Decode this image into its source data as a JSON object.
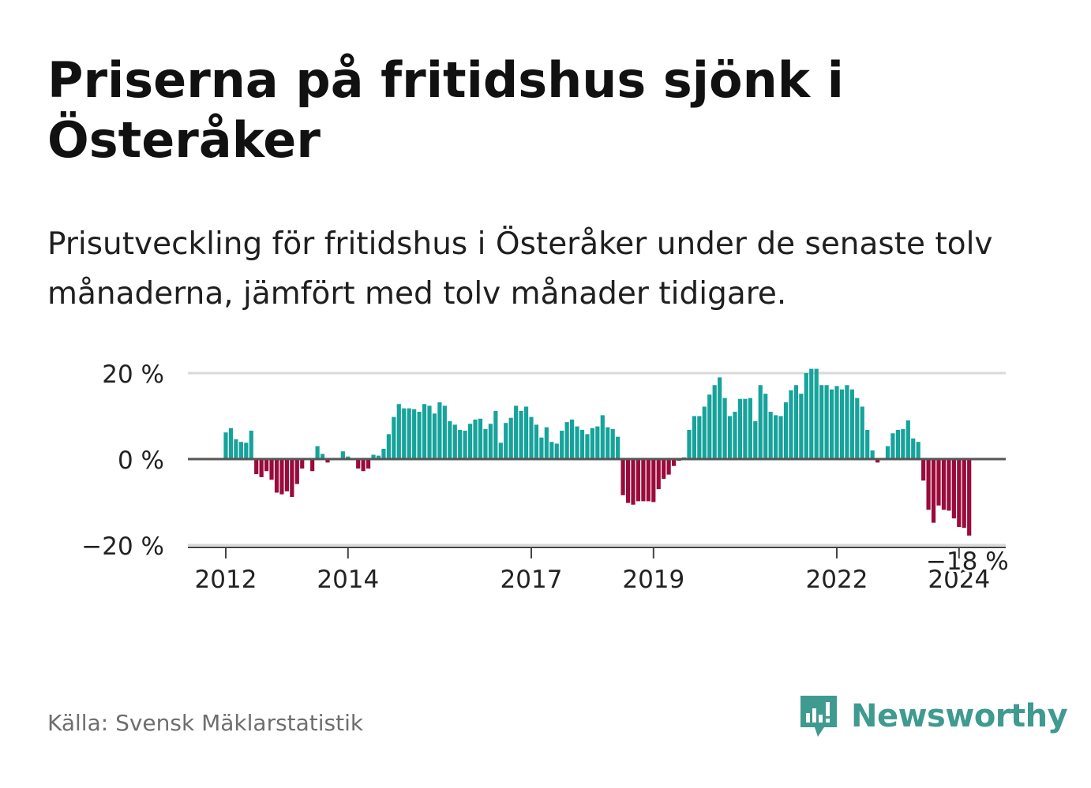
{
  "header": {
    "title": "Priserna på fritidshus sjönk i Österåker",
    "subtitle": "Prisutveckling för fritidshus i Österåker under de senaste tolv månaderna, jämfört med tolv månader tidigare."
  },
  "footer": {
    "source": "Källa: Svensk Mäklarstatistik",
    "brand": "Newsworthy",
    "brand_icon": "newsworthy-logo-icon"
  },
  "colors": {
    "positive": "#16a39b",
    "negative": "#9a0a3a",
    "brand": "#3f9a90",
    "gridline": "#d9d9d9",
    "zero_line": "#555555"
  },
  "chart_data": {
    "type": "bar",
    "title": "",
    "xlabel": "",
    "ylabel": "",
    "ylim": [
      -20,
      20
    ],
    "y_ticks": [
      20,
      0,
      -20
    ],
    "y_tick_labels": [
      "20 %",
      "0 %",
      "−20 %"
    ],
    "x_tick_labels": [
      "2012",
      "2014",
      "2017",
      "2019",
      "2022",
      "2024"
    ],
    "x_tick_index": [
      0,
      24,
      60,
      84,
      120,
      144
    ],
    "start": "2012-01",
    "end": "2024-06",
    "end_label": "−18 %",
    "values": [
      6.2,
      7.2,
      4.6,
      4.0,
      3.8,
      6.6,
      -3.5,
      -4.2,
      -2.8,
      -4.8,
      -7.8,
      -8.2,
      -7.5,
      -8.8,
      -5.8,
      -2.2,
      0,
      -2.8,
      3.0,
      1.2,
      -0.8,
      0,
      0,
      1.8,
      0.6,
      0,
      -2.2,
      -2.8,
      -2.2,
      1.0,
      0.8,
      2.4,
      5.8,
      9.8,
      12.8,
      11.8,
      11.8,
      11.6,
      11.0,
      12.8,
      12.4,
      10.6,
      13.2,
      12.4,
      8.8,
      8.0,
      6.8,
      6.6,
      8.2,
      9.2,
      9.4,
      7.0,
      8.2,
      11.2,
      3.8,
      8.4,
      9.6,
      12.4,
      11.2,
      12.2,
      9.8,
      8.0,
      5.0,
      7.4,
      4.0,
      3.6,
      6.6,
      8.6,
      9.2,
      7.6,
      6.8,
      5.8,
      7.2,
      7.6,
      10.2,
      7.4,
      7.0,
      5.2,
      -8.4,
      -10.2,
      -10.6,
      -9.8,
      -9.8,
      -9.8,
      -10.0,
      -7.0,
      -4.6,
      -3.6,
      -1.6,
      -0.4,
      0.4,
      6.8,
      10.0,
      10.0,
      12.2,
      15.0,
      17.2,
      19.0,
      14.2,
      10.0,
      11.0,
      14.0,
      14.0,
      14.2,
      8.8,
      17.2,
      15.2,
      11.0,
      10.2,
      10.0,
      13.2,
      16.0,
      17.2,
      15.2,
      20.0,
      21.0,
      21.0,
      17.2,
      17.2,
      16.2,
      17.0,
      16.2,
      17.2,
      16.2,
      14.2,
      12.2,
      6.8,
      2.0,
      -0.8,
      0,
      3.0,
      6.0,
      6.8,
      7.0,
      9.0,
      4.8,
      4.0,
      -5.0,
      -11.8,
      -14.8,
      -10.8,
      -11.8,
      -12.0,
      -13.8,
      -15.8,
      -16.0,
      -17.8
    ]
  }
}
